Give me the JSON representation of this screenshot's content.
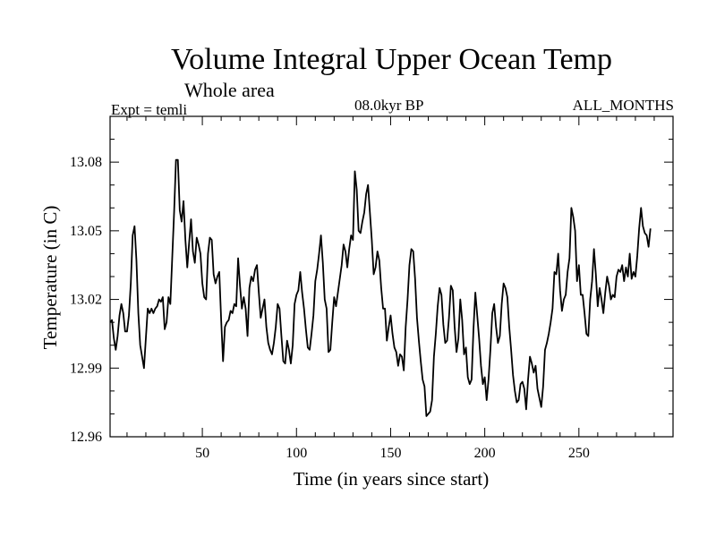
{
  "page": {
    "background": "#ffffff",
    "line_color": "#000000"
  },
  "header": {
    "title": "Volume Integral Upper Ocean Temp",
    "region": "Whole area",
    "experiment": "Expt = temli",
    "period": "08.0kyr BP",
    "months": "ALL_MONTHS"
  },
  "chart_data": {
    "type": "line",
    "title": "Volume Integral Upper Ocean Temp",
    "xlabel": "Time (in years since start)",
    "ylabel": "Temperature (in C)",
    "xlim": [
      1,
      300
    ],
    "ylim": [
      12.96,
      13.1
    ],
    "x_ticks": [
      50,
      100,
      150,
      200,
      250
    ],
    "y_ticks": [
      12.96,
      12.99,
      13.02,
      13.05,
      13.08
    ],
    "y_tick_labels": [
      "12.96",
      "12.99",
      "13.02",
      "13.05",
      "13.08"
    ],
    "grid": false,
    "series": [
      {
        "name": "temli",
        "x_start": 1,
        "x_step": 1,
        "values": [
          13.01,
          13.011,
          13.003,
          12.998,
          13.004,
          13.013,
          13.018,
          13.014,
          13.006,
          13.006,
          13.013,
          13.027,
          13.048,
          13.052,
          13.037,
          13.014,
          13.0,
          12.995,
          12.99,
          13.003,
          13.016,
          13.014,
          13.016,
          13.014,
          13.016,
          13.017,
          13.02,
          13.019,
          13.021,
          13.007,
          13.01,
          13.021,
          13.018,
          13.038,
          13.058,
          13.081,
          13.081,
          13.059,
          13.054,
          13.063,
          13.046,
          13.034,
          13.045,
          13.055,
          13.041,
          13.036,
          13.047,
          13.044,
          13.04,
          13.027,
          13.021,
          13.02,
          13.04,
          13.047,
          13.046,
          13.031,
          13.027,
          13.03,
          13.032,
          13.011,
          12.993,
          13.008,
          13.01,
          13.011,
          13.015,
          13.014,
          13.018,
          13.017,
          13.038,
          13.026,
          13.016,
          13.021,
          13.016,
          13.004,
          13.025,
          13.03,
          13.028,
          13.033,
          13.035,
          13.023,
          13.012,
          13.016,
          13.02,
          13.008,
          13.001,
          12.998,
          12.996,
          13.001,
          13.008,
          13.018,
          13.016,
          13.004,
          12.993,
          12.992,
          13.002,
          12.998,
          12.992,
          13.0,
          13.018,
          13.022,
          13.024,
          13.032,
          13.023,
          13.016,
          13.007,
          12.999,
          12.998,
          13.005,
          13.013,
          13.028,
          13.033,
          13.04,
          13.048,
          13.036,
          13.02,
          13.016,
          12.997,
          12.998,
          13.01,
          13.021,
          13.017,
          13.023,
          13.029,
          13.035,
          13.044,
          13.041,
          13.034,
          13.042,
          13.048,
          13.046,
          13.076,
          13.068,
          13.05,
          13.049,
          13.054,
          13.058,
          13.066,
          13.07,
          13.058,
          13.046,
          13.031,
          13.034,
          13.041,
          13.037,
          13.025,
          13.016,
          13.016,
          13.002,
          13.008,
          13.013,
          13.005,
          12.999,
          12.997,
          12.991,
          12.996,
          12.995,
          12.989,
          13.008,
          13.02,
          13.035,
          13.042,
          13.041,
          13.029,
          13.012,
          13.002,
          12.993,
          12.985,
          12.982,
          12.969,
          12.97,
          12.971,
          12.976,
          12.995,
          13.005,
          13.017,
          13.025,
          13.022,
          13.009,
          13.001,
          13.002,
          13.012,
          13.026,
          13.024,
          13.008,
          12.997,
          13.003,
          13.02,
          13.011,
          12.996,
          12.999,
          12.986,
          12.983,
          12.985,
          13.007,
          13.023,
          13.013,
          13.003,
          12.991,
          12.983,
          12.986,
          12.976,
          12.985,
          12.998,
          13.014,
          13.018,
          13.008,
          13.001,
          13.004,
          13.018,
          13.027,
          13.025,
          13.021,
          13.008,
          12.998,
          12.987,
          12.98,
          12.975,
          12.976,
          12.983,
          12.984,
          12.981,
          12.972,
          12.985,
          12.995,
          12.992,
          12.988,
          12.991,
          12.981,
          12.977,
          12.973,
          12.982,
          12.998,
          13.001,
          13.005,
          13.01,
          13.016,
          13.032,
          13.031,
          13.04,
          13.024,
          13.015,
          13.02,
          13.022,
          13.032,
          13.038,
          13.06,
          13.056,
          13.05,
          13.028,
          13.035,
          13.022,
          13.022,
          13.014,
          13.005,
          13.004,
          13.02,
          13.028,
          13.042,
          13.031,
          13.017,
          13.025,
          13.02,
          13.014,
          13.023,
          13.03,
          13.026,
          13.02,
          13.022,
          13.021,
          13.03,
          13.033,
          13.032,
          13.035,
          13.028,
          13.034,
          13.03,
          13.04,
          13.029,
          13.032,
          13.03,
          13.039,
          13.051,
          13.06,
          13.052,
          13.049,
          13.048,
          13.043,
          13.051
        ]
      }
    ]
  }
}
